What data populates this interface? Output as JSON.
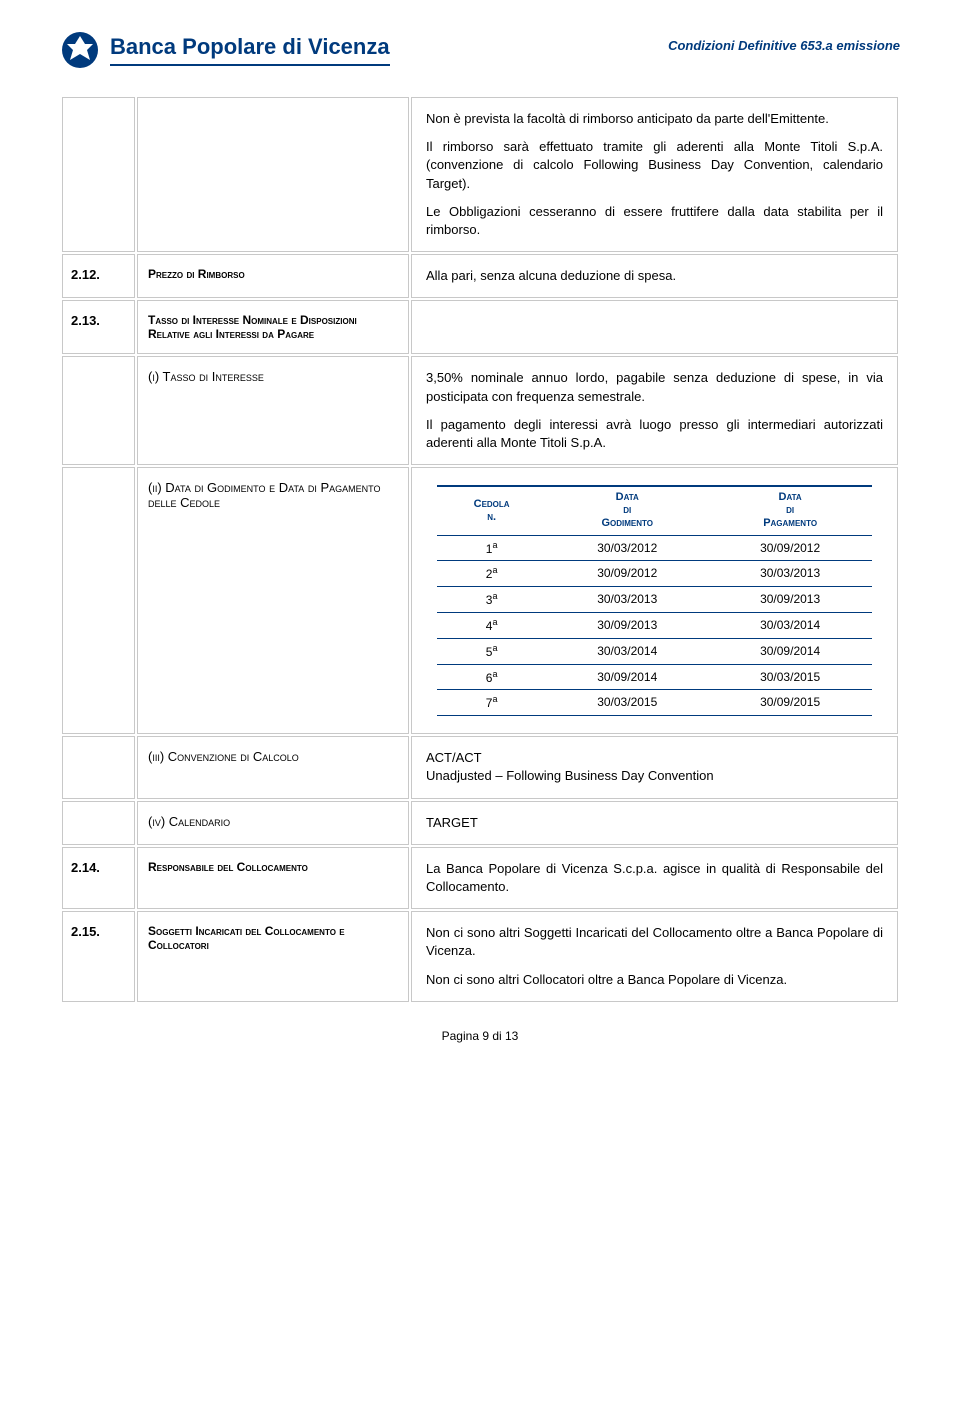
{
  "header": {
    "bank_name": "Banca Popolare di Vicenza",
    "doc_ref": "Condizioni Definitive 653.a emissione"
  },
  "rows": {
    "r1": {
      "p1": "Non è prevista la facoltà di rimborso anticipato da parte dell'Emittente.",
      "p2": "Il rimborso sarà effettuato tramite gli aderenti alla Monte Titoli S.p.A. (convenzione di calcolo Following Business Day Convention, calendario Target).",
      "p3": "Le Obbligazioni cesseranno di essere fruttifere dalla data stabilita per il rimborso."
    },
    "r2": {
      "num": "2.12.",
      "label": "Prezzo di Rimborso",
      "content": "Alla pari, senza alcuna deduzione di spesa."
    },
    "r3": {
      "num": "2.13.",
      "label": "Tasso di Interesse Nominale e Disposizioni Relative agli Interessi da Pagare"
    },
    "r4": {
      "label": "(i) Tasso di Interesse",
      "p1": "3,50% nominale annuo lordo, pagabile senza deduzione di spese, in via posticipata con frequenza semestrale.",
      "p2": "Il pagamento degli interessi avrà luogo presso gli intermediari autorizzati aderenti alla Monte Titoli S.p.A."
    },
    "r5": {
      "label": "(ii) Data di Godimento e Data di Pagamento delle Cedole",
      "table": {
        "h1a": "Cedola",
        "h1b": "n.",
        "h2a": "Data",
        "h2b": "di",
        "h2c": "Godimento",
        "h3a": "Data",
        "h3b": "di",
        "h3c": "Pagamento",
        "rows": [
          {
            "n": "1",
            "sup": "a",
            "god": "30/03/2012",
            "pag": "30/09/2012"
          },
          {
            "n": "2",
            "sup": "a",
            "god": "30/09/2012",
            "pag": "30/03/2013"
          },
          {
            "n": "3",
            "sup": "a",
            "god": "30/03/2013",
            "pag": "30/09/2013"
          },
          {
            "n": "4",
            "sup": "a",
            "god": "30/09/2013",
            "pag": "30/03/2014"
          },
          {
            "n": "5",
            "sup": "a",
            "god": "30/03/2014",
            "pag": "30/09/2014"
          },
          {
            "n": "6",
            "sup": "a",
            "god": "30/09/2014",
            "pag": "30/03/2015"
          },
          {
            "n": "7",
            "sup": "a",
            "god": "30/03/2015",
            "pag": "30/09/2015"
          }
        ]
      }
    },
    "r6": {
      "label": "(iii) Convenzione di Calcolo",
      "p1": "ACT/ACT",
      "p2": "Unadjusted – Following Business Day Convention"
    },
    "r7": {
      "label": "(iv) Calendario",
      "content": "TARGET"
    },
    "r8": {
      "num": "2.14.",
      "label": "Responsabile del Collocamento",
      "content": "La Banca Popolare di Vicenza S.c.p.a. agisce in qualità di Responsabile del Collocamento."
    },
    "r9": {
      "num": "2.15.",
      "label": "Soggetti Incaricati del Collocamento e Collocatori",
      "p1": "Non ci sono altri Soggetti Incaricati del Collocamento oltre a Banca Popolare di Vicenza.",
      "p2": "Non ci sono altri Collocatori oltre a Banca Popolare di Vicenza."
    }
  },
  "footer": {
    "page": "Pagina 9 di 13"
  }
}
